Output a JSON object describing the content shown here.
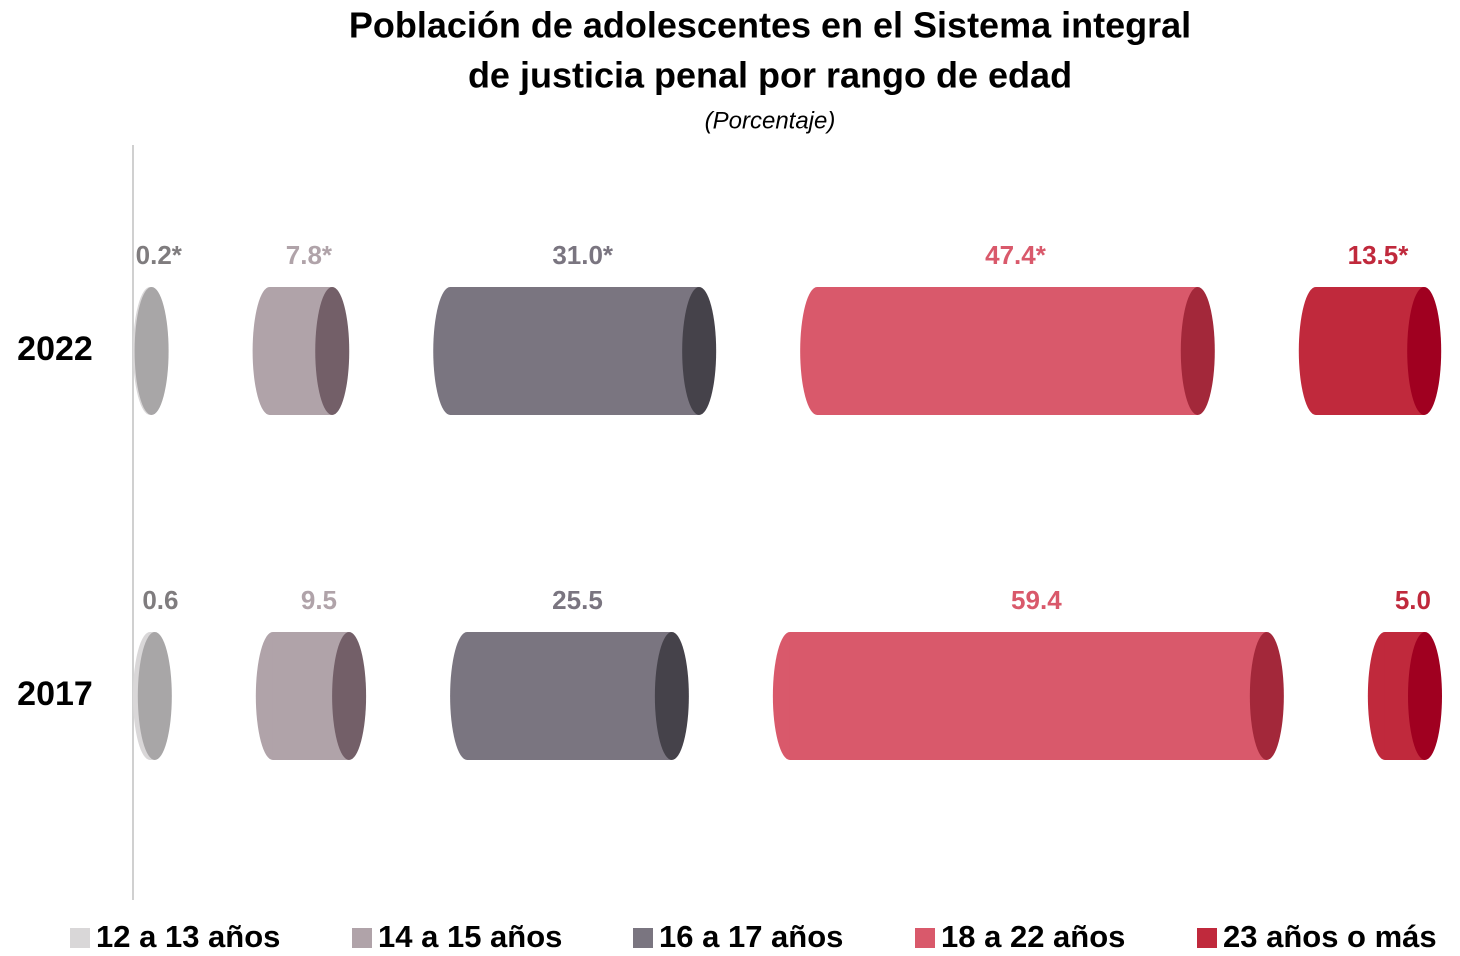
{
  "chart_data": {
    "type": "stacked_bar_horizontal",
    "title": [
      "Población de adolescentes en el Sistema integral",
      "de justicia penal por rango de edad"
    ],
    "subtitle": "(Porcentaje)",
    "categories": [
      "2022",
      "2017"
    ],
    "series": [
      {
        "name": "12 a 13 años",
        "color": "#d9d7d8",
        "cap_color": "#a8a6a7",
        "values": [
          0.2,
          0.6
        ],
        "value_labels": [
          "0.2*",
          "0.6"
        ]
      },
      {
        "name": "14 a 15 años",
        "color": "#b0a3a9",
        "cap_color": "#735f68",
        "values": [
          7.8,
          9.5
        ],
        "value_labels": [
          "7.8*",
          "9.5"
        ]
      },
      {
        "name": "16 a 17 años",
        "color": "#7a7580",
        "cap_color": "#45424a",
        "values": [
          31.0,
          25.5
        ],
        "value_labels": [
          "31.0*",
          "25.5"
        ]
      },
      {
        "name": "18 a 22 años",
        "color": "#d9596b",
        "cap_color": "#a3283a",
        "values": [
          47.4,
          59.4
        ],
        "value_labels": [
          "47.4*",
          "59.4"
        ]
      },
      {
        "name": "23 años o más",
        "color": "#c0293c",
        "cap_color": "#a00020",
        "values": [
          13.5,
          5.0
        ],
        "value_labels": [
          "13.5*",
          "5.0"
        ]
      }
    ],
    "legend": "bottom"
  }
}
